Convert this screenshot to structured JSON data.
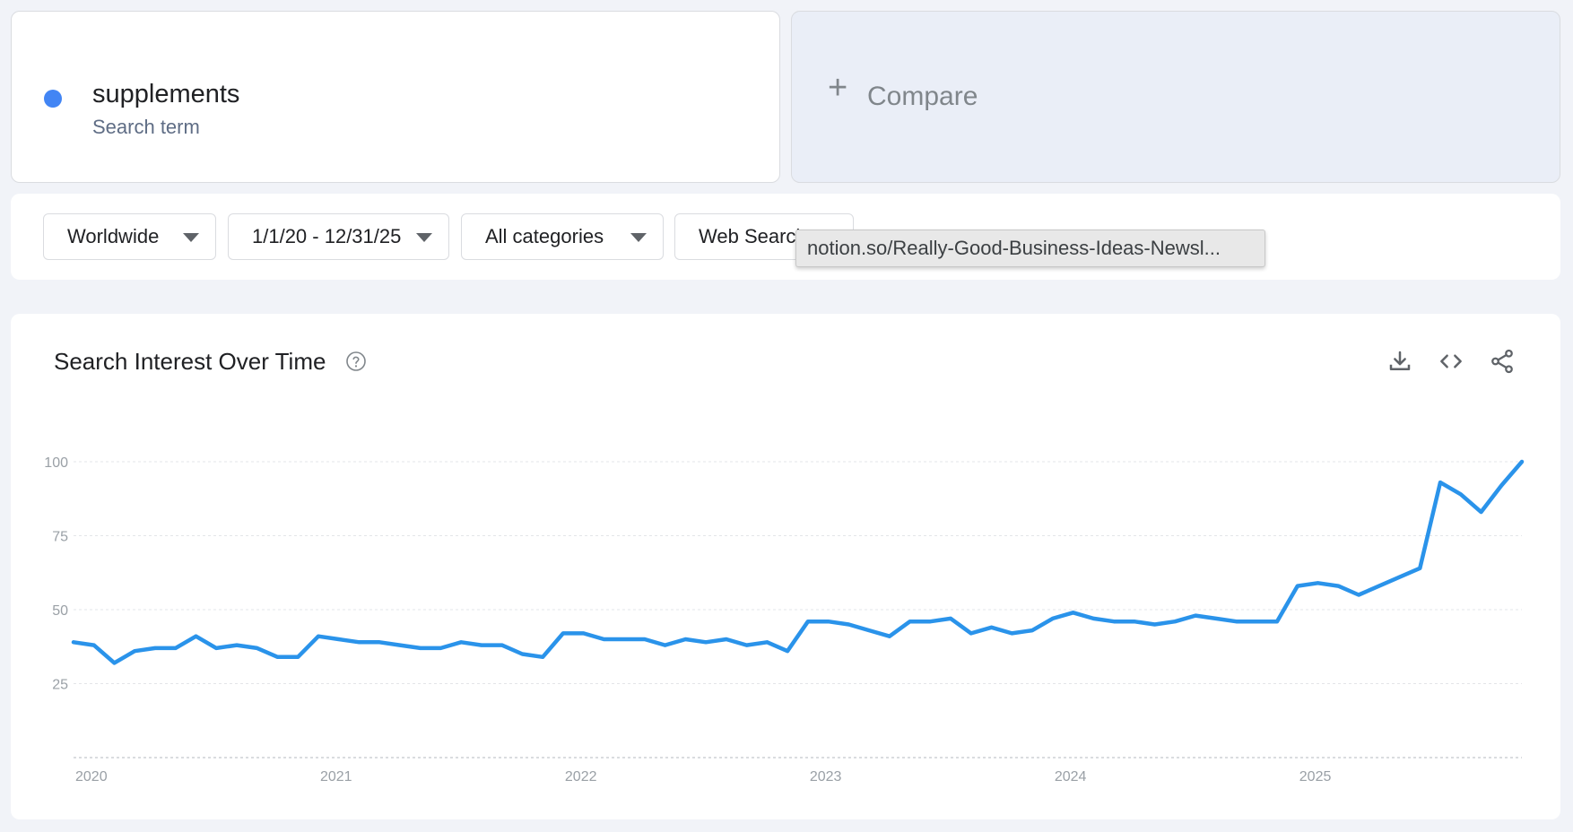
{
  "term": {
    "name": "supplements",
    "type": "Search term",
    "color": "#4285f4"
  },
  "compare": {
    "label": "Compare",
    "icon": "plus-icon"
  },
  "filters": {
    "region": "Worldwide",
    "date_range": "1/1/20 - 12/31/25",
    "category": "All categories",
    "search_type": "Web Search"
  },
  "tooltip": {
    "text": "notion.so/Really-Good-Business-Ideas-Newsl..."
  },
  "chart": {
    "title": "Search Interest Over Time",
    "help_icon": "help-circle-icon",
    "actions": [
      "download-icon",
      "embed-code-icon",
      "share-icon"
    ],
    "line_color": "#2a93ea"
  },
  "chart_data": {
    "type": "line",
    "title": "Search Interest Over Time",
    "xlabel": "",
    "ylabel": "",
    "x_range": [
      "2020-01",
      "2025-12"
    ],
    "ylim": [
      0,
      100
    ],
    "y_ticks": [
      25,
      50,
      75,
      100
    ],
    "x_tick_labels": [
      "2020",
      "2021",
      "2022",
      "2023",
      "2024",
      "2025"
    ],
    "grid": true,
    "series": [
      {
        "name": "supplements",
        "x": [
          "2020-01",
          "2020-02",
          "2020-03",
          "2020-04",
          "2020-05",
          "2020-06",
          "2020-07",
          "2020-08",
          "2020-09",
          "2020-10",
          "2020-11",
          "2020-12",
          "2021-01",
          "2021-02",
          "2021-03",
          "2021-04",
          "2021-05",
          "2021-06",
          "2021-07",
          "2021-08",
          "2021-09",
          "2021-10",
          "2021-11",
          "2021-12",
          "2022-01",
          "2022-02",
          "2022-03",
          "2022-04",
          "2022-05",
          "2022-06",
          "2022-07",
          "2022-08",
          "2022-09",
          "2022-10",
          "2022-11",
          "2022-12",
          "2023-01",
          "2023-02",
          "2023-03",
          "2023-04",
          "2023-05",
          "2023-06",
          "2023-07",
          "2023-08",
          "2023-09",
          "2023-10",
          "2023-11",
          "2023-12",
          "2024-01",
          "2024-02",
          "2024-03",
          "2024-04",
          "2024-05",
          "2024-06",
          "2024-07",
          "2024-08",
          "2024-09",
          "2024-10",
          "2024-11",
          "2024-12",
          "2025-01",
          "2025-02",
          "2025-03",
          "2025-04",
          "2025-05",
          "2025-06",
          "2025-07",
          "2025-08",
          "2025-09",
          "2025-10",
          "2025-11",
          "2025-12"
        ],
        "values": [
          39,
          38,
          32,
          36,
          37,
          37,
          41,
          37,
          38,
          37,
          34,
          34,
          41,
          40,
          39,
          39,
          38,
          37,
          37,
          39,
          38,
          38,
          35,
          34,
          42,
          42,
          40,
          40,
          40,
          38,
          40,
          39,
          40,
          38,
          39,
          36,
          46,
          46,
          45,
          43,
          41,
          46,
          46,
          47,
          42,
          44,
          42,
          43,
          47,
          49,
          47,
          46,
          46,
          45,
          46,
          48,
          47,
          46,
          46,
          46,
          58,
          59,
          58,
          55,
          58,
          61,
          64,
          93,
          89,
          83,
          92,
          100
        ]
      }
    ]
  }
}
